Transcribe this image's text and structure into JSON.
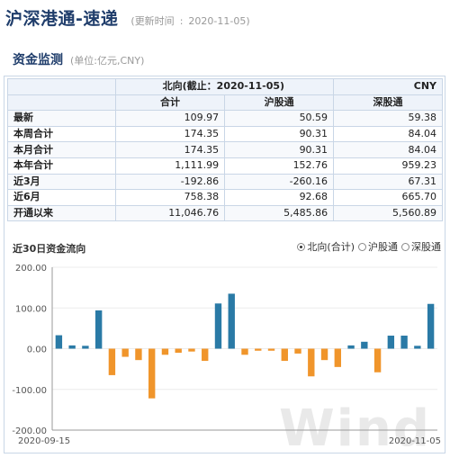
{
  "header": {
    "title": "沪深港通-速递",
    "updated_label": "更新时间",
    "updated_sep": ":",
    "updated_date": "2020-11-05"
  },
  "section": {
    "title": "资金监测",
    "unit": "(单位:亿元,CNY)"
  },
  "table": {
    "caption": "北向(截止：2020-11-05)",
    "currency": "CNY",
    "columns": [
      "合计",
      "沪股通",
      "深股通"
    ],
    "rows": [
      {
        "label": "最新",
        "values": [
          "109.97",
          "50.59",
          "59.38"
        ]
      },
      {
        "label": "本周合计",
        "values": [
          "174.35",
          "90.31",
          "84.04"
        ]
      },
      {
        "label": "本月合计",
        "values": [
          "174.35",
          "90.31",
          "84.04"
        ]
      },
      {
        "label": "本年合计",
        "values": [
          "1,111.99",
          "152.76",
          "959.23"
        ]
      },
      {
        "label": "近3月",
        "values": [
          "-192.86",
          "-260.16",
          "67.31"
        ]
      },
      {
        "label": "近6月",
        "values": [
          "758.38",
          "92.68",
          "665.70"
        ]
      },
      {
        "label": "开通以来",
        "values": [
          "11,046.76",
          "5,485.86",
          "5,560.89"
        ]
      }
    ]
  },
  "chart_header": {
    "title": "近30日资金流向",
    "options": [
      {
        "label": "北向(合计)",
        "selected": true
      },
      {
        "label": "沪股通",
        "selected": false
      },
      {
        "label": "深股通",
        "selected": false
      }
    ]
  },
  "watermark": "Wind",
  "chart_data": {
    "type": "bar",
    "title": "",
    "xlabel": "",
    "ylabel": "",
    "ylim": [
      -200,
      200
    ],
    "yticks": [
      "200.00",
      "100.00",
      "0.00",
      "-100.00",
      "-200.00"
    ],
    "x_start_label": "2020-09-15",
    "x_end_label": "2020-11-05",
    "positive_color": "#2a7aa6",
    "negative_color": "#f0952b",
    "grid": true,
    "values": [
      33,
      8,
      7,
      94,
      -65,
      -20,
      -28,
      -122,
      -15,
      -10,
      -7,
      -30,
      111,
      135,
      -15,
      -5,
      -5,
      -30,
      -12,
      -68,
      -28,
      -45,
      8,
      17,
      -58,
      32,
      32,
      7,
      110
    ]
  }
}
